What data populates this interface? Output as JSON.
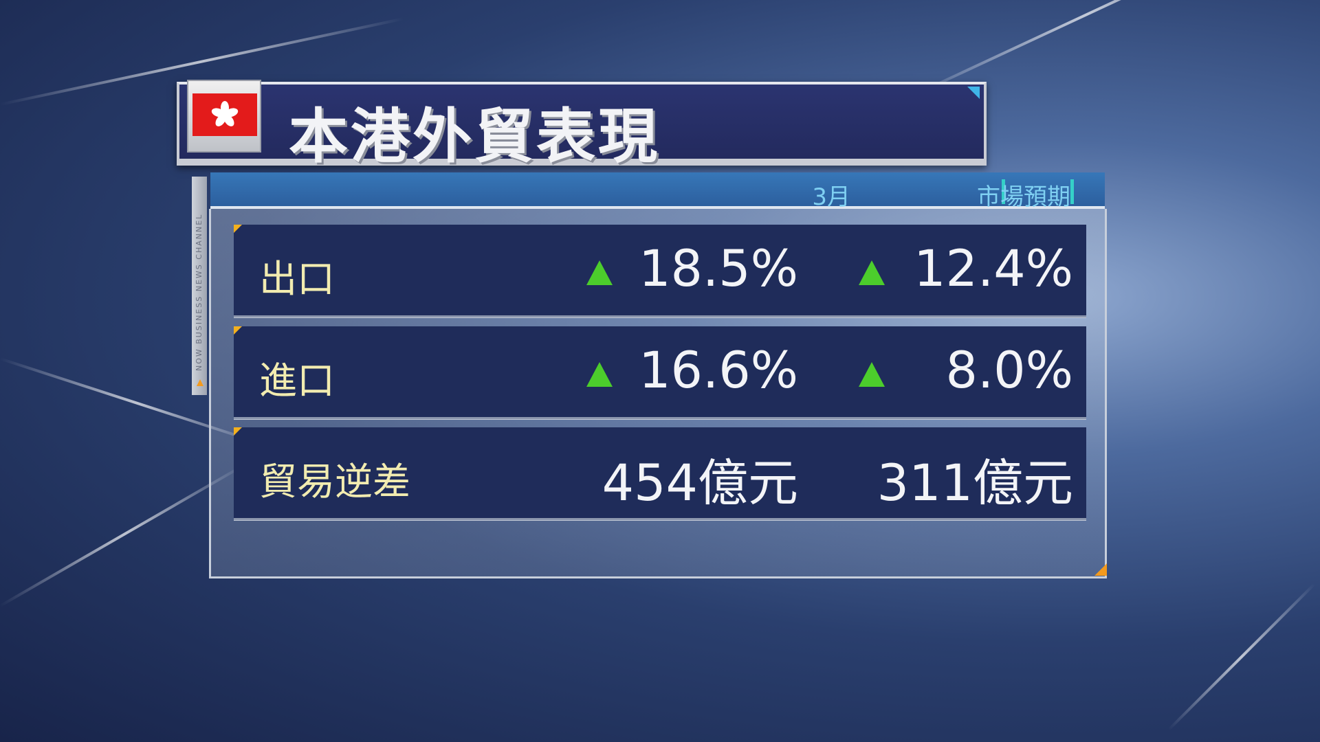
{
  "title": "本港外貿表現",
  "flag_icon": "hong-kong-flag",
  "channel_label": "NOW BUSINESS NEWS CHANNEL",
  "columns": [
    "3月",
    "市場預期"
  ],
  "rows": [
    {
      "label": "出口",
      "march": "18.5%",
      "march_trend": "up",
      "expected": "12.4%",
      "expected_trend": "up"
    },
    {
      "label": "進口",
      "march": "16.6%",
      "march_trend": "up",
      "expected": "8.0%",
      "expected_trend": "up"
    },
    {
      "label": "貿易逆差",
      "march": "454億元",
      "march_trend": null,
      "expected": "311億元",
      "expected_trend": null
    }
  ],
  "colors": {
    "title_bg": "#232a5e",
    "row_bg": "#1f2c5a",
    "up_arrow": "#4ccd2c",
    "label_text": "#f2ecb0",
    "header_text": "#7fd0f2",
    "flag_red": "#e31b1b"
  }
}
